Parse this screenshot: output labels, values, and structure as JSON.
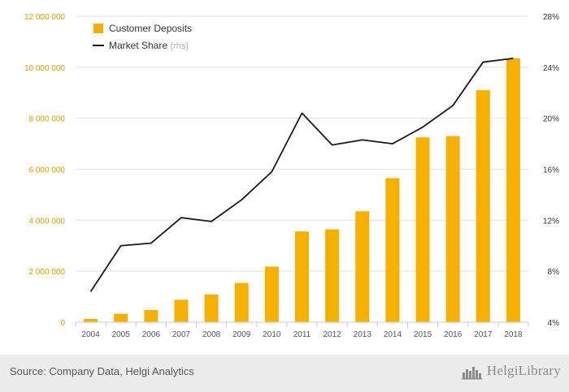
{
  "colors": {
    "bar": "#f5b000",
    "line": "#1a1a1a",
    "left_axis_text": "#d9a100",
    "right_axis_text": "#333333",
    "grid": "#e3e3e3",
    "footer_bg": "#ececec"
  },
  "chart_data": {
    "type": "bar",
    "categories": [
      "2004",
      "2005",
      "2006",
      "2007",
      "2008",
      "2009",
      "2010",
      "2011",
      "2012",
      "2013",
      "2014",
      "2015",
      "2016",
      "2017",
      "2018"
    ],
    "series": [
      {
        "name": "Customer Deposits",
        "type": "bar",
        "axis": "left",
        "values": [
          130000,
          330000,
          480000,
          880000,
          1090000,
          1540000,
          2180000,
          3560000,
          3640000,
          4350000,
          5650000,
          7250000,
          7300000,
          9100000,
          10350000
        ]
      },
      {
        "name": "Market Share",
        "legend_suffix": "(rhs)",
        "type": "line",
        "axis": "right",
        "values": [
          6.4,
          10.0,
          10.2,
          12.2,
          11.9,
          13.6,
          15.8,
          20.4,
          17.9,
          18.3,
          18.0,
          19.3,
          21.0,
          24.4,
          24.7
        ]
      }
    ],
    "y_left": {
      "min": 0,
      "max": 12000000,
      "ticks": [
        0,
        2000000,
        4000000,
        6000000,
        8000000,
        10000000,
        12000000
      ],
      "tick_labels": [
        "0",
        "2 000 000",
        "4 000 000",
        "6 000 000",
        "8 000 000",
        "10 000 000",
        "12 000 000"
      ]
    },
    "y_right": {
      "min": 4,
      "max": 28,
      "ticks": [
        4,
        8,
        12,
        16,
        20,
        24,
        28
      ],
      "tick_labels": [
        "4%",
        "8%",
        "12%",
        "16%",
        "20%",
        "24%",
        "28%"
      ]
    },
    "grid": true,
    "legend_position": "top-left"
  },
  "footer": {
    "source": "Source: Company Data, Helgi Analytics",
    "brand": "HelgiLibrary"
  }
}
